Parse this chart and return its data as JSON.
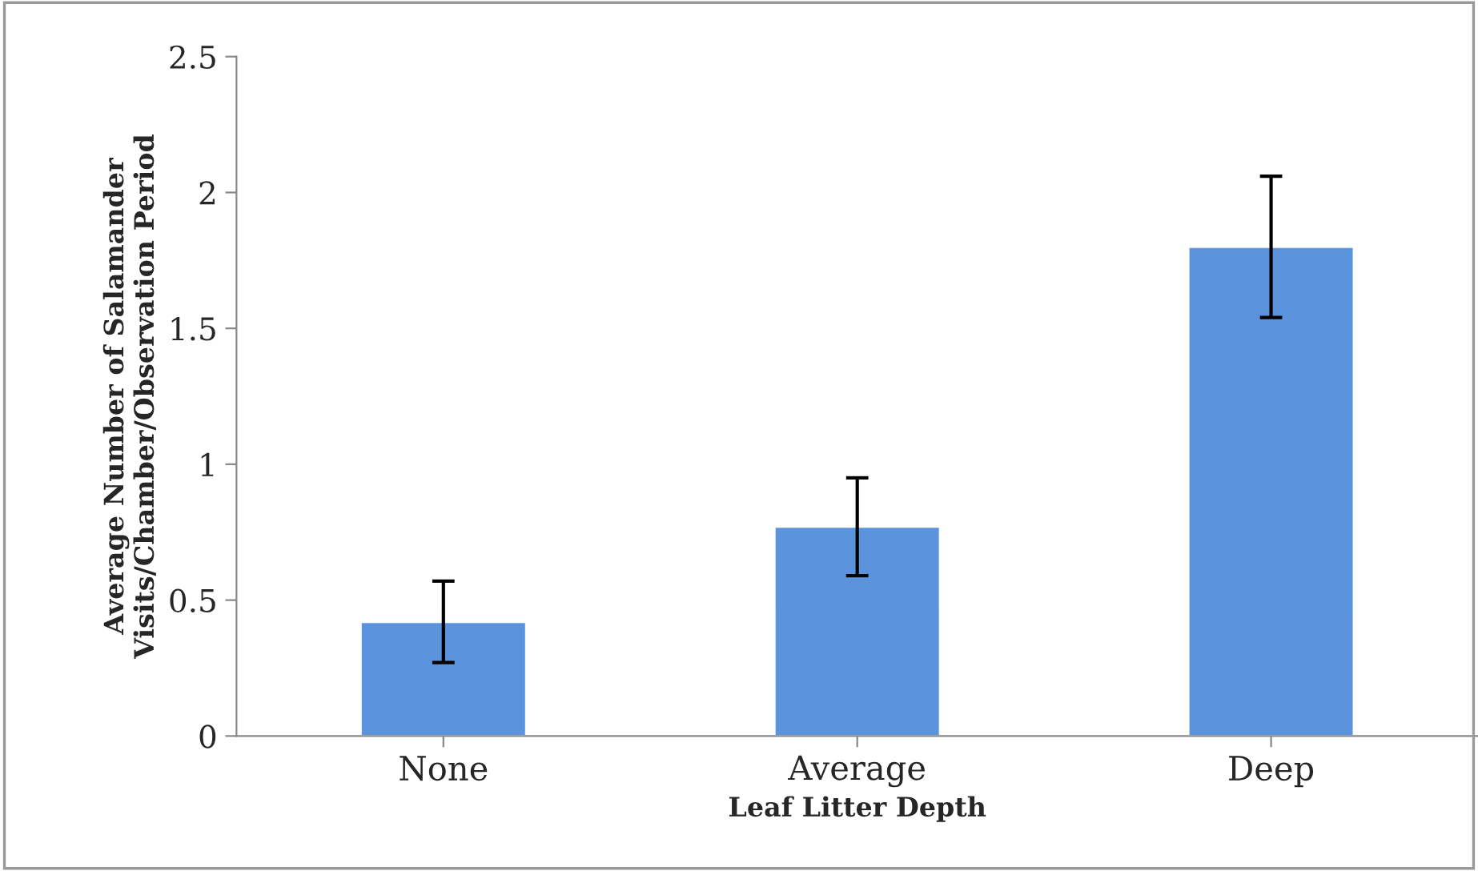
{
  "chart_data": {
    "type": "bar",
    "categories": [
      "None",
      "Average",
      "Deep"
    ],
    "values": [
      0.42,
      0.77,
      1.8
    ],
    "errors": [
      0.15,
      0.18,
      0.26
    ],
    "color": "#5b93dd",
    "xlabel": "Leaf Litter Depth",
    "ylabel": "Average Number of Salamander Visits/Chamber/Observation Period",
    "ylim": [
      0,
      2.5
    ],
    "yticks": [
      0,
      0.5,
      1,
      1.5,
      2,
      2.5
    ],
    "grid": false
  }
}
